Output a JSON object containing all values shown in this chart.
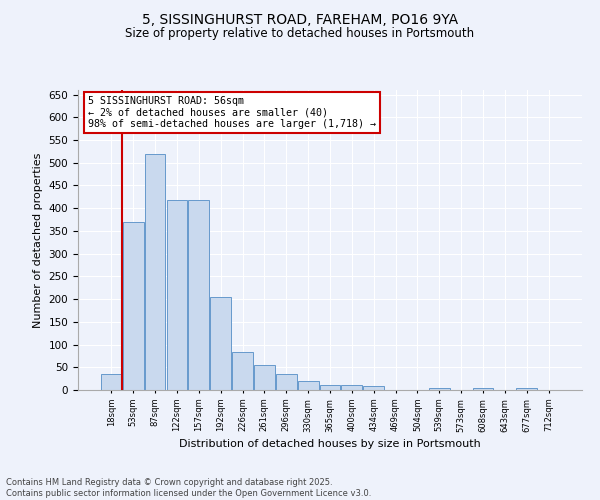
{
  "title_line1": "5, SISSINGHURST ROAD, FAREHAM, PO16 9YA",
  "title_line2": "Size of property relative to detached houses in Portsmouth",
  "xlabel": "Distribution of detached houses by size in Portsmouth",
  "ylabel": "Number of detached properties",
  "bins": [
    "18sqm",
    "53sqm",
    "87sqm",
    "122sqm",
    "157sqm",
    "192sqm",
    "226sqm",
    "261sqm",
    "296sqm",
    "330sqm",
    "365sqm",
    "400sqm",
    "434sqm",
    "469sqm",
    "504sqm",
    "539sqm",
    "573sqm",
    "608sqm",
    "643sqm",
    "677sqm",
    "712sqm"
  ],
  "bar_values": [
    35,
    370,
    520,
    418,
    418,
    205,
    84,
    55,
    35,
    20,
    10,
    10,
    8,
    0,
    0,
    5,
    0,
    5,
    0,
    5,
    0
  ],
  "bar_color": "#c9d9ee",
  "bar_edge_color": "#6699cc",
  "vline_x_idx": 0.5,
  "vline_color": "#cc0000",
  "annotation_text": "5 SISSINGHURST ROAD: 56sqm\n← 2% of detached houses are smaller (40)\n98% of semi-detached houses are larger (1,718) →",
  "annotation_box_edgecolor": "#cc0000",
  "ylim_max": 660,
  "yticks": [
    0,
    50,
    100,
    150,
    200,
    250,
    300,
    350,
    400,
    450,
    500,
    550,
    600,
    650
  ],
  "footer": "Contains HM Land Registry data © Crown copyright and database right 2025.\nContains public sector information licensed under the Open Government Licence v3.0.",
  "bg_color": "#eef2fb",
  "grid_color": "#ffffff",
  "title1_fontsize": 10,
  "title2_fontsize": 8.5,
  "ylabel_fontsize": 8,
  "xlabel_fontsize": 8
}
